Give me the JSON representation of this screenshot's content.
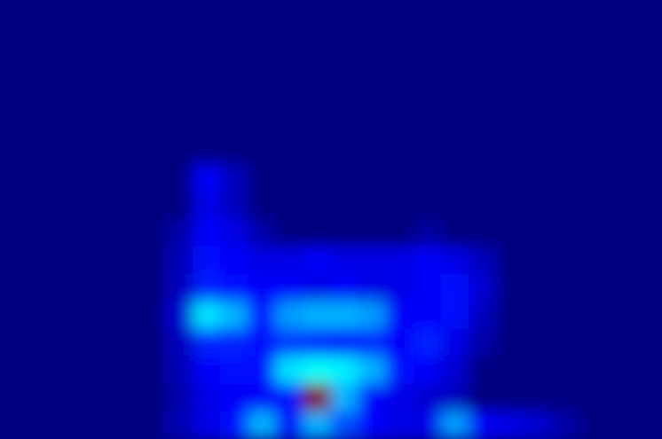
{
  "chart_data": {
    "type": "heatmap",
    "tick_labels": false,
    "zlim": [
      0,
      1
    ],
    "values": [
      [
        0,
        0,
        0,
        0,
        0,
        0,
        0,
        0,
        0,
        0,
        0,
        0,
        0,
        0,
        0,
        0,
        0,
        0,
        0,
        0,
        0,
        0,
        0,
        0
      ],
      [
        0,
        0,
        0,
        0,
        0,
        0,
        0,
        0,
        0,
        0,
        0,
        0,
        0,
        0,
        0,
        0,
        0,
        0,
        0,
        0,
        0,
        0,
        0,
        0
      ],
      [
        0,
        0,
        0,
        0,
        0,
        0,
        0,
        0,
        0,
        0,
        0,
        0,
        0,
        0,
        0,
        0,
        0,
        0,
        0,
        0,
        0,
        0,
        0,
        0
      ],
      [
        0,
        0,
        0,
        0,
        0,
        0,
        0,
        0,
        0,
        0,
        0,
        0,
        0,
        0,
        0,
        0,
        0,
        0,
        0,
        0,
        0,
        0,
        0,
        0
      ],
      [
        0,
        0,
        0,
        0,
        0,
        0,
        0,
        0,
        0,
        0,
        0,
        0,
        0,
        0,
        0,
        0,
        0,
        0,
        0,
        0,
        0,
        0,
        0,
        0
      ],
      [
        0,
        0,
        0,
        0,
        0,
        0,
        0,
        0,
        0,
        0,
        0,
        0,
        0,
        0,
        0,
        0,
        0,
        0,
        0,
        0,
        0,
        0,
        0,
        0
      ],
      [
        0,
        0,
        0,
        0,
        0,
        0,
        0,
        0.12,
        0.06,
        0,
        0,
        0,
        0,
        0,
        0,
        0,
        0,
        0,
        0,
        0,
        0,
        0,
        0,
        0
      ],
      [
        0,
        0,
        0,
        0,
        0,
        0,
        0,
        0.1,
        0.06,
        0,
        0,
        0,
        0,
        0,
        0,
        0,
        0,
        0,
        0,
        0,
        0,
        0,
        0,
        0
      ],
      [
        0,
        0,
        0,
        0,
        0,
        0,
        0.04,
        0.12,
        0.1,
        0.04,
        0,
        0,
        0,
        0,
        0,
        0.03,
        0,
        0,
        0,
        0,
        0,
        0,
        0,
        0
      ],
      [
        0,
        0,
        0,
        0,
        0,
        0,
        0.05,
        0.14,
        0.12,
        0.1,
        0.1,
        0.12,
        0.1,
        0.1,
        0.1,
        0.12,
        0.1,
        0.06,
        0,
        0,
        0,
        0,
        0,
        0
      ],
      [
        0,
        0,
        0,
        0,
        0,
        0,
        0.06,
        0.15,
        0.14,
        0.12,
        0.12,
        0.1,
        0.12,
        0.1,
        0.1,
        0.12,
        0.14,
        0.08,
        0,
        0,
        0,
        0,
        0,
        0
      ],
      [
        0,
        0,
        0,
        0,
        0,
        0,
        0.08,
        0.35,
        0.3,
        0.14,
        0.28,
        0.3,
        0.3,
        0.28,
        0.12,
        0.12,
        0.14,
        0.06,
        0,
        0,
        0,
        0,
        0,
        0
      ],
      [
        0,
        0,
        0,
        0,
        0,
        0,
        0.06,
        0.16,
        0.16,
        0.14,
        0.18,
        0.16,
        0.14,
        0.16,
        0.12,
        0.16,
        0.1,
        0.04,
        0,
        0,
        0,
        0,
        0,
        0
      ],
      [
        0,
        0,
        0,
        0,
        0,
        0,
        0.05,
        0.12,
        0.14,
        0.14,
        0.35,
        0.38,
        0.36,
        0.3,
        0.14,
        0.12,
        0.08,
        0,
        0,
        0,
        0,
        0,
        0,
        0
      ],
      [
        0,
        0,
        0,
        0,
        0,
        0,
        0.04,
        0.1,
        0.12,
        0.12,
        0.14,
        1,
        0.3,
        0.12,
        0.1,
        0.08,
        0.06,
        0,
        0,
        0,
        0,
        0,
        0,
        0
      ],
      [
        0,
        0,
        0,
        0,
        0,
        0,
        0.05,
        0.1,
        0.14,
        0.3,
        0.12,
        0.3,
        0.2,
        0.12,
        0.1,
        0.1,
        0.28,
        0.12,
        0.1,
        0.08,
        0.04,
        0,
        0,
        0
      ]
    ]
  }
}
